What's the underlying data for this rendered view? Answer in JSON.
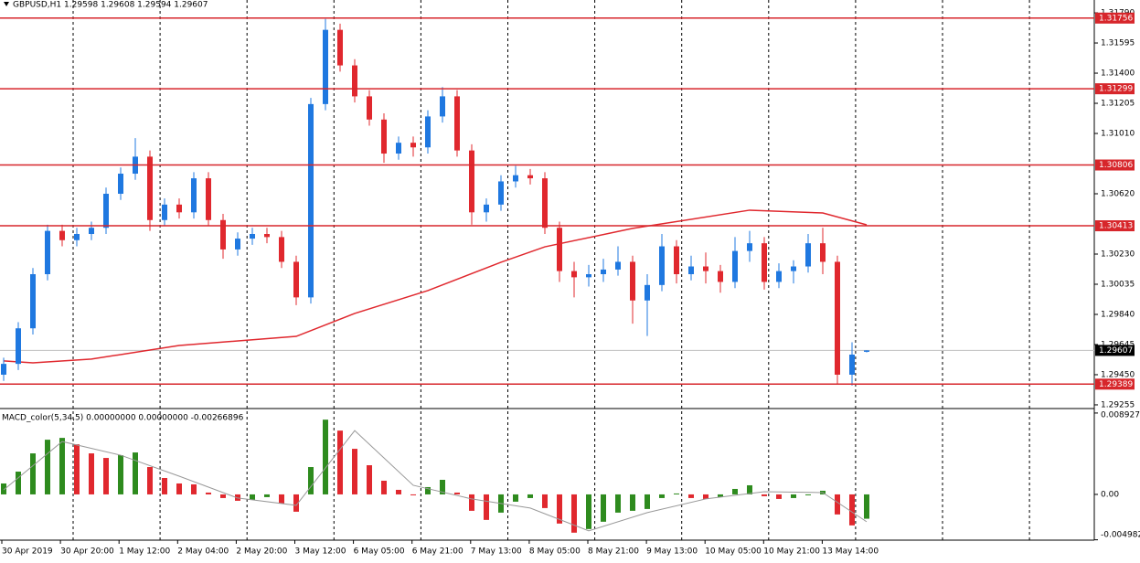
{
  "chart_data": {
    "type": "candlestick",
    "title": "GBPUSD,H1  1.29598 1.29608 1.29594 1.29607",
    "ohlc": [
      [
        1.2945,
        1.2956,
        1.2941,
        1.2952
      ],
      [
        1.2952,
        1.2979,
        1.2948,
        1.2975
      ],
      [
        1.2975,
        1.3014,
        1.2971,
        1.301
      ],
      [
        1.301,
        1.3042,
        1.3006,
        1.3038
      ],
      [
        1.3038,
        1.3042,
        1.3028,
        1.3032
      ],
      [
        1.3032,
        1.304,
        1.3028,
        1.3036
      ],
      [
        1.3036,
        1.3044,
        1.3032,
        1.304
      ],
      [
        1.304,
        1.3066,
        1.3036,
        1.3062
      ],
      [
        1.3062,
        1.3079,
        1.3058,
        1.3075
      ],
      [
        1.3075,
        1.3098,
        1.3071,
        1.3086
      ],
      [
        1.3086,
        1.309,
        1.3038,
        1.3045
      ],
      [
        1.3045,
        1.3059,
        1.3041,
        1.3055
      ],
      [
        1.3055,
        1.3059,
        1.3046,
        1.305
      ],
      [
        1.305,
        1.3076,
        1.3046,
        1.3072
      ],
      [
        1.3072,
        1.3076,
        1.3041,
        1.3045
      ],
      [
        1.3045,
        1.3049,
        1.302,
        1.3026
      ],
      [
        1.3026,
        1.3037,
        1.3022,
        1.3033
      ],
      [
        1.3033,
        1.304,
        1.3029,
        1.3036
      ],
      [
        1.3036,
        1.304,
        1.303,
        1.3034
      ],
      [
        1.3034,
        1.3038,
        1.3014,
        1.3018
      ],
      [
        1.3018,
        1.3022,
        1.299,
        1.2995
      ],
      [
        1.2995,
        1.3124,
        1.2991,
        1.312
      ],
      [
        1.312,
        1.3175,
        1.3116,
        1.3168
      ],
      [
        1.3168,
        1.3172,
        1.3141,
        1.3145
      ],
      [
        1.3145,
        1.3149,
        1.3121,
        1.3125
      ],
      [
        1.3125,
        1.3129,
        1.3106,
        1.311
      ],
      [
        1.311,
        1.3114,
        1.3082,
        1.3088
      ],
      [
        1.3088,
        1.3099,
        1.3084,
        1.3095
      ],
      [
        1.3095,
        1.3099,
        1.3086,
        1.3092
      ],
      [
        1.3092,
        1.3116,
        1.3088,
        1.3112
      ],
      [
        1.3112,
        1.3131,
        1.3108,
        1.3125
      ],
      [
        1.3125,
        1.3129,
        1.3086,
        1.309
      ],
      [
        1.309,
        1.3094,
        1.3042,
        1.305
      ],
      [
        1.305,
        1.3059,
        1.3044,
        1.3055
      ],
      [
        1.3055,
        1.3074,
        1.3051,
        1.307
      ],
      [
        1.307,
        1.308,
        1.3066,
        1.3074
      ],
      [
        1.3074,
        1.3078,
        1.3068,
        1.3072
      ],
      [
        1.3072,
        1.3076,
        1.3036,
        1.304
      ],
      [
        1.304,
        1.3044,
        1.3005,
        1.3012
      ],
      [
        1.3012,
        1.3018,
        1.2995,
        1.3008
      ],
      [
        1.3008,
        1.3016,
        1.3002,
        1.301
      ],
      [
        1.301,
        1.302,
        1.3005,
        1.3013
      ],
      [
        1.3013,
        1.3028,
        1.3009,
        1.3018
      ],
      [
        1.3018,
        1.3022,
        1.2978,
        1.2993
      ],
      [
        1.2993,
        1.301,
        1.297,
        1.3003
      ],
      [
        1.3003,
        1.3036,
        1.2999,
        1.3028
      ],
      [
        1.3028,
        1.3032,
        1.3004,
        1.301
      ],
      [
        1.301,
        1.3022,
        1.3006,
        1.3015
      ],
      [
        1.3015,
        1.3024,
        1.3004,
        1.3012
      ],
      [
        1.3012,
        1.3016,
        1.2998,
        1.3005
      ],
      [
        1.3005,
        1.3034,
        1.3001,
        1.3025
      ],
      [
        1.3025,
        1.3038,
        1.3018,
        1.303
      ],
      [
        1.303,
        1.3034,
        1.3,
        1.3005
      ],
      [
        1.3005,
        1.3017,
        1.3001,
        1.3012
      ],
      [
        1.3012,
        1.3019,
        1.3004,
        1.3015
      ],
      [
        1.3015,
        1.3036,
        1.3011,
        1.303
      ],
      [
        1.303,
        1.304,
        1.301,
        1.3018
      ],
      [
        1.3018,
        1.3022,
        1.2939,
        1.2945
      ],
      [
        1.2945,
        1.2966,
        1.2938,
        1.2958
      ],
      [
        1.29598,
        1.29608,
        1.29594,
        1.29607
      ]
    ],
    "bull_color": "#1f78e0",
    "bear_color": "#e0282e",
    "ma": {
      "index": [
        0,
        2,
        6,
        12,
        20,
        24,
        29,
        34,
        37,
        43,
        51,
        56,
        59
      ],
      "values": [
        1.29539,
        1.29527,
        1.29551,
        1.29639,
        1.29698,
        1.29846,
        1.29994,
        1.30177,
        1.30277,
        1.30396,
        1.30514,
        1.30496,
        1.30419
      ],
      "color": "#e0282e"
    },
    "levels": [
      1.31756,
      1.31299,
      1.30806,
      1.30413,
      1.29389
    ],
    "level_color": "#d7262b",
    "current_price": 1.29607,
    "ylim": [
      1.29243,
      1.31873
    ],
    "yticks": [
      {
        "value": 1.3179,
        "label": "1.31790"
      },
      1.31595,
      {
        "value": 1.314,
        "label": "1.31400"
      },
      1.31205,
      {
        "value": 1.3101,
        "label": "1.31010"
      },
      {
        "value": 1.3062,
        "label": "1.30620"
      },
      {
        "value": 1.3023,
        "label": "1.30230"
      },
      1.30035,
      {
        "value": 1.2984,
        "label": "1.29840"
      },
      1.29645,
      {
        "value": 1.2945,
        "label": "1.29450"
      },
      1.29255
    ],
    "macd": {
      "title": "MACD_color(5,34,5) 0.00000000 0.00000000 -0.00266896",
      "values": [
        0.0012,
        0.0025,
        0.0045,
        0.006,
        0.0062,
        0.0055,
        0.0045,
        0.004,
        0.0043,
        0.0046,
        0.003,
        0.0018,
        0.0012,
        0.0011,
        0.0002,
        -0.0004,
        -0.0007,
        -0.0006,
        -0.0003,
        -0.001,
        -0.0019,
        0.003,
        0.0082,
        0.007,
        0.005,
        0.0032,
        0.0015,
        0.0005,
        0,
        0.0008,
        0.0016,
        0.0002,
        -0.0018,
        -0.0028,
        -0.002,
        -0.0008,
        -0.0004,
        -0.0015,
        -0.0032,
        -0.0042,
        -0.0038,
        -0.003,
        -0.002,
        -0.0018,
        -0.0016,
        -0.0004,
        0.0001,
        -0.0004,
        -0.0005,
        -0.0003,
        0.0006,
        0.001,
        -0.0002,
        -0.0005,
        -0.0004,
        -0.0001,
        0.0004,
        -0.0022,
        -0.0034,
        -0.00266896
      ],
      "signal": {
        "index": [
          0,
          4,
          8,
          12,
          16,
          20,
          24,
          28,
          32,
          36,
          40,
          44,
          48,
          52,
          56,
          59
        ],
        "values": [
          0.0005,
          0.0058,
          0.0043,
          0.002,
          -0.0004,
          -0.0012,
          0.007,
          0.001,
          -0.0005,
          -0.0015,
          -0.004,
          -0.002,
          -0.0005,
          0.0003,
          0.0002,
          -0.003
        ]
      },
      "up_color": "#2e8b1e",
      "down_color": "#e0282e",
      "ylim": [
        -0.00502,
        0.00922
      ],
      "yticks": [
        0.0089275,
        {
          "value": 0,
          "label": "0.00"
        },
        -0.004982
      ]
    },
    "time_labels": [
      "30 Apr 2019",
      "30 Apr 20:00",
      "1 May 12:00",
      "2 May 04:00",
      "2 May 20:00",
      "3 May 12:00",
      "6 May 05:00",
      "6 May 21:00",
      "7 May 13:00",
      "8 May 05:00",
      "8 May 21:00",
      "9 May 13:00",
      "10 May 05:00",
      "10 May 21:00",
      "13 May 14:00"
    ]
  }
}
